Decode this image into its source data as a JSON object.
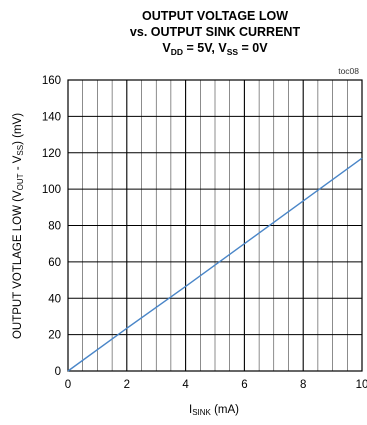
{
  "title": {
    "line1": "OUTPUT VOLTAGE LOW",
    "line2": "vs. OUTPUT SINK CURRENT",
    "line3_a": "V",
    "line3_a_sub": "DD",
    "line3_b": " = 5V, V",
    "line3_b_sub": "SS",
    "line3_c": " = 0V"
  },
  "tag": "toc08",
  "colors": {
    "line": "#4a86c8",
    "grid": "#000000"
  },
  "chart_data": {
    "type": "line",
    "title": "OUTPUT VOLTAGE LOW vs. OUTPUT SINK CURRENT",
    "xlabel": {
      "main": "I",
      "sub": "SINK",
      "tail": " (mA)"
    },
    "ylabel": {
      "p1": "OUTPUT VOTLAGE LOW (V",
      "s1": "OUT",
      "p2": " - V",
      "s2": "SS",
      "p3": ") (mV)"
    },
    "xlim": [
      0,
      10
    ],
    "ylim": [
      0,
      160
    ],
    "x_ticks": [
      0,
      2,
      4,
      6,
      8,
      10
    ],
    "y_ticks": [
      0,
      20,
      40,
      60,
      80,
      100,
      120,
      140,
      160
    ],
    "grid": true,
    "series": [
      {
        "x": [
          0,
          2,
          4,
          6,
          8,
          10
        ],
        "y": [
          0,
          23.5,
          46.5,
          70,
          93.5,
          117
        ]
      }
    ]
  }
}
